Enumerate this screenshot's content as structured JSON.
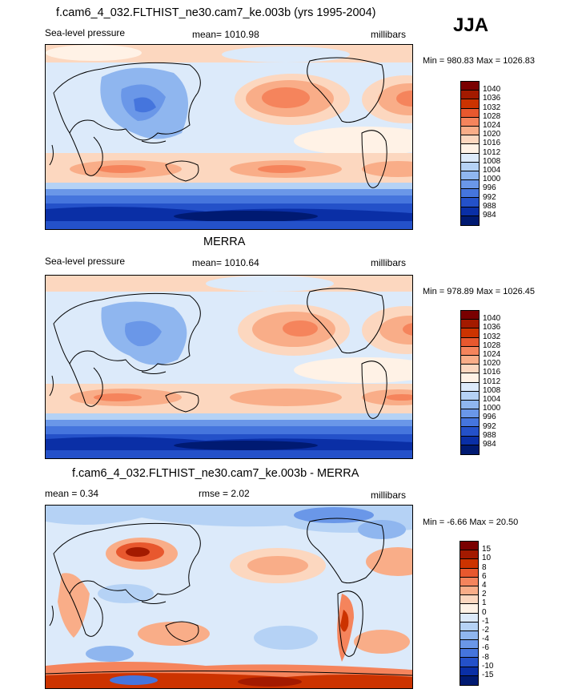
{
  "season": "JJA",
  "panels": [
    {
      "title": "f.cam6_4_032.FLTHIST_ne30.cam7_ke.003b (yrs 1995-2004)",
      "left_label": "Sea-level pressure",
      "center_label": "mean= 1010.98",
      "right_label": "millibars",
      "minmax": "Min = 980.83 Max = 1026.83",
      "colorbar": {
        "labels": [
          "1040",
          "1036",
          "1032",
          "1028",
          "1024",
          "1020",
          "1016",
          "1012",
          "1008",
          "1004",
          "1000",
          "996",
          "992",
          "988",
          "984"
        ],
        "colors": [
          "#7a0000",
          "#a31a00",
          "#cc3300",
          "#e8582e",
          "#f5845c",
          "#f9ad88",
          "#fcd7bf",
          "#fff2e6",
          "#dceafa",
          "#b5d2f5",
          "#8fb6ef",
          "#6a97e8",
          "#4575dd",
          "#2451c9",
          "#0a2fa6",
          "#001a72"
        ]
      }
    },
    {
      "title": "MERRA",
      "left_label": "Sea-level pressure",
      "center_label": "mean= 1010.64",
      "right_label": "millibars",
      "minmax": "Min = 978.89 Max = 1026.45",
      "colorbar": {
        "labels": [
          "1040",
          "1036",
          "1032",
          "1028",
          "1024",
          "1020",
          "1016",
          "1012",
          "1008",
          "1004",
          "1000",
          "996",
          "992",
          "988",
          "984"
        ],
        "colors": [
          "#7a0000",
          "#a31a00",
          "#cc3300",
          "#e8582e",
          "#f5845c",
          "#f9ad88",
          "#fcd7bf",
          "#fff2e6",
          "#dceafa",
          "#b5d2f5",
          "#8fb6ef",
          "#6a97e8",
          "#4575dd",
          "#2451c9",
          "#0a2fa6",
          "#001a72"
        ]
      }
    },
    {
      "title": "f.cam6_4_032.FLTHIST_ne30.cam7_ke.003b - MERRA",
      "left_label": "mean =   0.34",
      "center_label": "rmse =   2.02",
      "right_label": "millibars",
      "minmax": "Min =  -6.66 Max =  20.50",
      "colorbar": {
        "labels": [
          "15",
          "10",
          "8",
          "6",
          "4",
          "2",
          "1",
          "0",
          "-1",
          "-2",
          "-4",
          "-6",
          "-8",
          "-10",
          "-15"
        ],
        "colors": [
          "#7a0000",
          "#a31a00",
          "#cc3300",
          "#e8582e",
          "#f5845c",
          "#f9ad88",
          "#fcd7bf",
          "#fff2e6",
          "#dceafa",
          "#b5d2f5",
          "#8fb6ef",
          "#6a97e8",
          "#4575dd",
          "#2451c9",
          "#0a2fa6",
          "#001a72"
        ]
      }
    }
  ]
}
